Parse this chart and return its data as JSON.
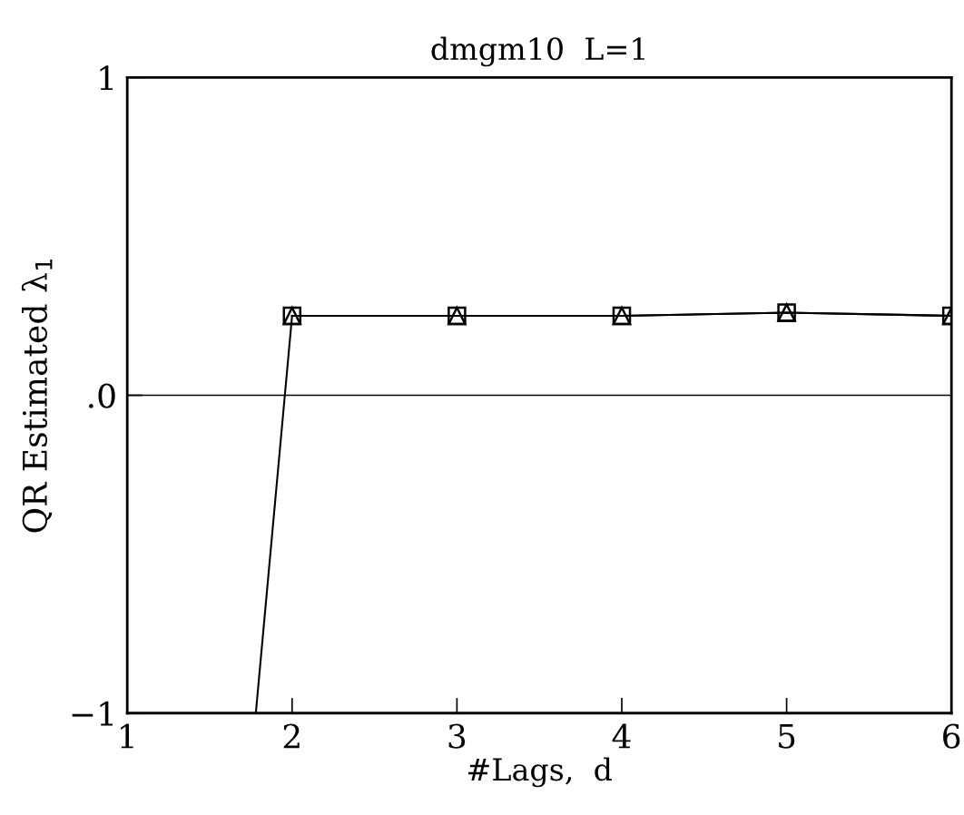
{
  "chart_data": {
    "type": "line",
    "title": "dmgm10  L=1",
    "xlabel": "#Lags,  d",
    "ylabel": "QR Estimated λ$_{1}$",
    "xlim": [
      1,
      6
    ],
    "xticks": [
      1,
      2,
      3,
      4,
      5,
      6
    ],
    "ylim": [
      -1,
      1
    ],
    "yticks": [
      {
        "value": -1,
        "label": "−1"
      },
      {
        "value": 0,
        "label": ".0"
      },
      1
    ],
    "series": [
      {
        "color": "#000000",
        "marker": "square",
        "x": [
          2,
          3,
          4,
          5,
          6
        ],
        "values": [
          0.25,
          0.25,
          0.25,
          0.26,
          0.25
        ]
      },
      {
        "color": "#000000",
        "marker": "triangle",
        "x": [
          2,
          3,
          4,
          5,
          6
        ],
        "values": [
          0.25,
          0.25,
          0.25,
          0.26,
          0.25
        ]
      },
      {
        "color": "#000000",
        "marker": "none",
        "x": [
          1.78,
          2
        ],
        "values": [
          -1,
          0.25
        ]
      }
    ],
    "ref_lines": [
      {
        "axis": "y",
        "value": 0,
        "color": "#000000"
      }
    ],
    "grid": false,
    "legend": false
  }
}
